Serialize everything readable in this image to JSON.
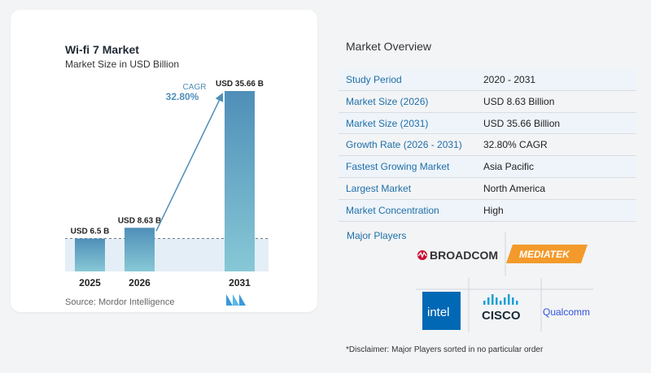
{
  "chart_data": {
    "type": "bar",
    "title": "Wi-fi 7 Market",
    "subtitle": "Market Size in USD Billion",
    "categories": [
      "2025",
      "2026",
      "2031"
    ],
    "values": [
      6.5,
      8.63,
      35.66
    ],
    "value_labels": [
      "USD 6.5 B",
      "USD 8.63 B",
      "USD 35.66 B"
    ],
    "cagr_label": "CAGR",
    "cagr_value": "32.80%",
    "source": "Source:  Mordor Intelligence",
    "colors": {
      "bar_top": "#4f8fb8",
      "bar_bottom": "#87c8d6",
      "arrow": "#4f8fb8",
      "cagr": "#4f8fb8"
    }
  },
  "overview": {
    "title": "Market Overview",
    "rows": [
      {
        "key": "Study Period",
        "value": "2020 - 2031"
      },
      {
        "key": "Market Size (2026)",
        "value": "USD 8.63 Billion"
      },
      {
        "key": "Market Size (2031)",
        "value": "USD 35.66 Billion"
      },
      {
        "key": "Growth Rate (2026 - 2031)",
        "value": "32.80% CAGR"
      },
      {
        "key": "Fastest Growing Market",
        "value": "Asia Pacific"
      },
      {
        "key": "Largest Market",
        "value": "North America"
      },
      {
        "key": "Market Concentration",
        "value": "High"
      }
    ]
  },
  "players": {
    "title": "Major Players",
    "names": [
      "BROADCOM",
      "MEDIATEK",
      "intel",
      "CISCO",
      "Qualcomm"
    ]
  },
  "disclaimer": "*Disclaimer: Major Players sorted in no particular order"
}
